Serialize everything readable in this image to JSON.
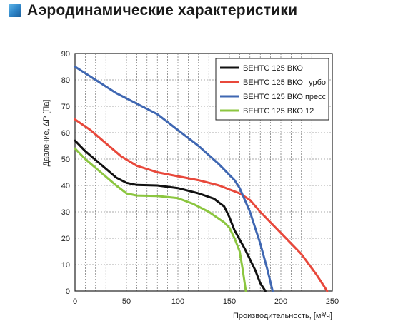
{
  "title": "Аэродинамические характеристики",
  "title_icon": "blue-square-icon",
  "chart_data": {
    "type": "line",
    "xlabel": "Производительность, [м³/ч]",
    "ylabel": "Давление, ΔP [Па]",
    "xlim": [
      0,
      250
    ],
    "ylim": [
      0,
      90
    ],
    "x_ticks": [
      0,
      50,
      100,
      150,
      200,
      250
    ],
    "y_ticks": [
      0,
      10,
      20,
      30,
      40,
      50,
      60,
      70,
      80,
      90
    ],
    "grid": true,
    "legend_position": "top-right",
    "series": [
      {
        "name": "ВЕНТС 125 ВКО",
        "color": "#111111",
        "points": [
          [
            0,
            57
          ],
          [
            10,
            53
          ],
          [
            25,
            48
          ],
          [
            40,
            43
          ],
          [
            50,
            41
          ],
          [
            60,
            40.2
          ],
          [
            80,
            40
          ],
          [
            100,
            39
          ],
          [
            120,
            37
          ],
          [
            135,
            35
          ],
          [
            145,
            32
          ],
          [
            150,
            28
          ],
          [
            155,
            23
          ],
          [
            165,
            16
          ],
          [
            175,
            8
          ],
          [
            180,
            3
          ],
          [
            185,
            0
          ]
        ]
      },
      {
        "name": "ВЕНТС 125 ВКО турбо",
        "color": "#e8483b",
        "points": [
          [
            0,
            65
          ],
          [
            15,
            61
          ],
          [
            30,
            56
          ],
          [
            45,
            51
          ],
          [
            60,
            47.5
          ],
          [
            80,
            45
          ],
          [
            100,
            43.5
          ],
          [
            120,
            42
          ],
          [
            140,
            40
          ],
          [
            160,
            37
          ],
          [
            170,
            34.5
          ],
          [
            180,
            30
          ],
          [
            200,
            22
          ],
          [
            220,
            14
          ],
          [
            235,
            6
          ],
          [
            245,
            0
          ]
        ]
      },
      {
        "name": "ВЕНТС 125 ВКО пресс",
        "color": "#3f67b2",
        "points": [
          [
            0,
            85
          ],
          [
            20,
            80
          ],
          [
            40,
            75
          ],
          [
            60,
            71
          ],
          [
            80,
            67
          ],
          [
            100,
            61
          ],
          [
            120,
            55
          ],
          [
            140,
            48
          ],
          [
            155,
            42
          ],
          [
            160,
            39
          ],
          [
            170,
            30
          ],
          [
            180,
            18
          ],
          [
            187,
            8
          ],
          [
            192,
            0
          ]
        ]
      },
      {
        "name": "ВЕНТС 125 ВКО 12",
        "color": "#8cc640",
        "points": [
          [
            0,
            54
          ],
          [
            10,
            50
          ],
          [
            25,
            45
          ],
          [
            40,
            40
          ],
          [
            50,
            37
          ],
          [
            60,
            36.2
          ],
          [
            80,
            36
          ],
          [
            100,
            35.2
          ],
          [
            115,
            33
          ],
          [
            130,
            30
          ],
          [
            145,
            26
          ],
          [
            150,
            24
          ],
          [
            155,
            20
          ],
          [
            160,
            15
          ],
          [
            163,
            8
          ],
          [
            166,
            0
          ]
        ]
      }
    ]
  }
}
